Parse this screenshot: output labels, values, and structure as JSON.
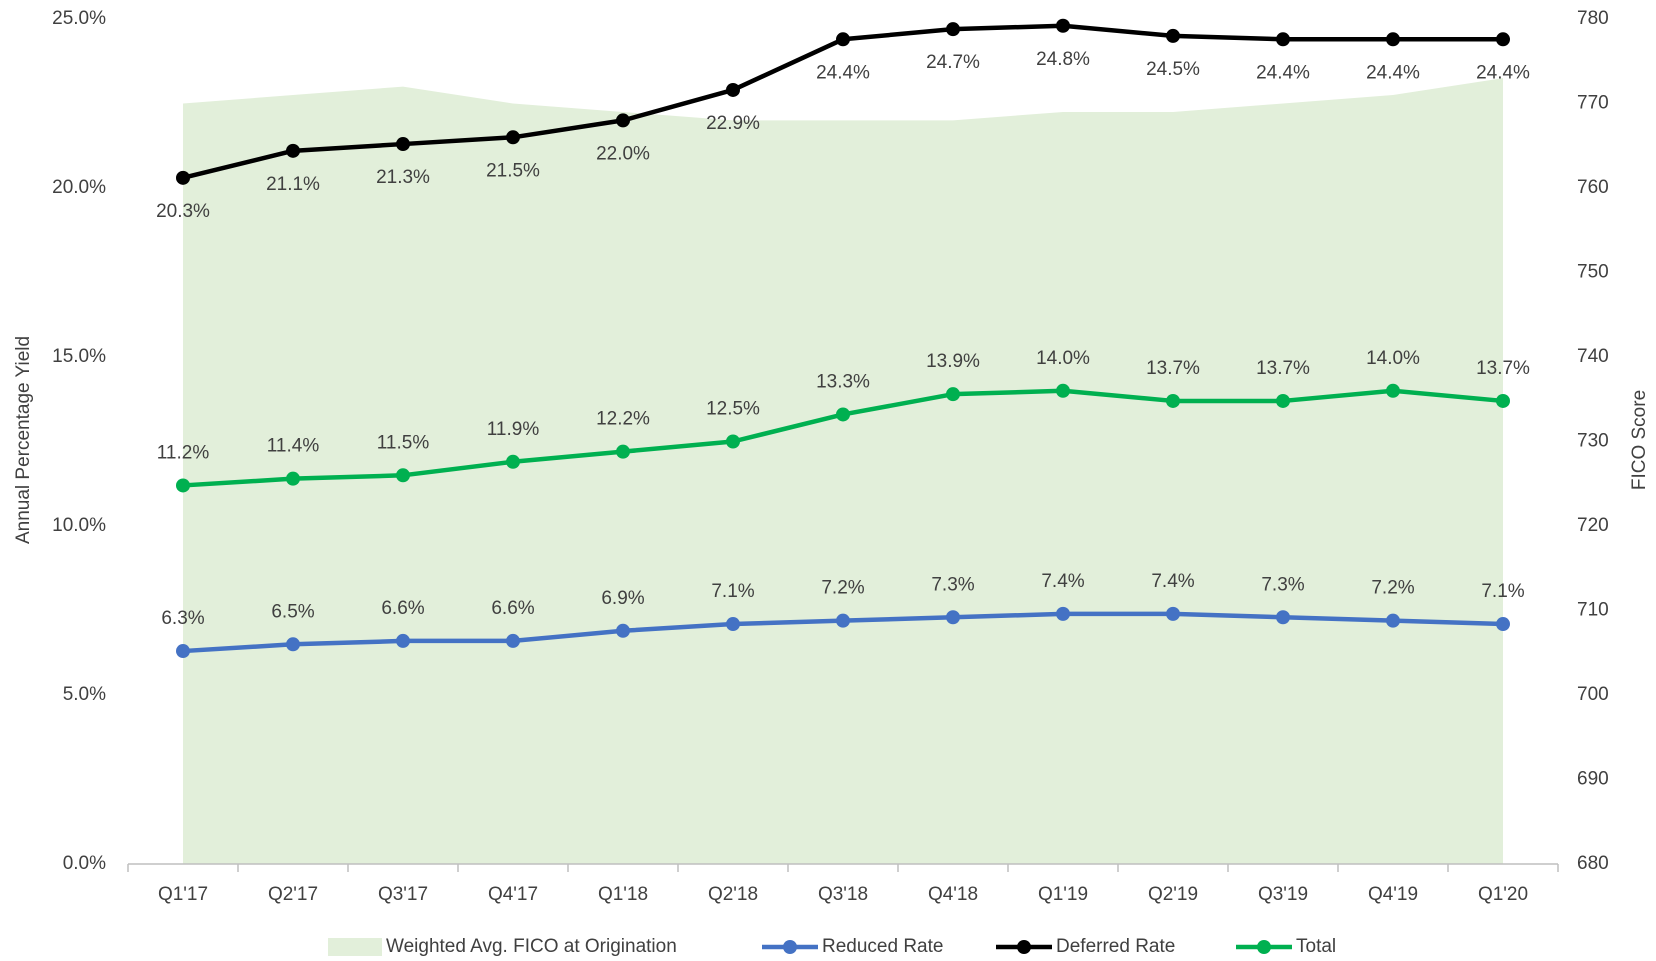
{
  "chart_data": {
    "type": "line",
    "y_label": "Annual Percentage Yield",
    "y2_label": "FICO Score",
    "categories": [
      "Q1'17",
      "Q2'17",
      "Q3'17",
      "Q4'17",
      "Q1'18",
      "Q2'18",
      "Q3'18",
      "Q4'18",
      "Q1'19",
      "Q2'19",
      "Q3'19",
      "Q4'19",
      "Q1'20"
    ],
    "ylim": [
      0,
      25
    ],
    "yticks": [
      {
        "value": 0,
        "label": "0.0%"
      },
      {
        "value": 5,
        "label": "5.0%"
      },
      {
        "value": 10,
        "label": "10.0%"
      },
      {
        "value": 15,
        "label": "15.0%"
      },
      {
        "value": 20,
        "label": "20.0%"
      },
      {
        "value": 25,
        "label": "25.0%"
      }
    ],
    "y2lim": [
      680,
      780
    ],
    "y2ticks": [
      680,
      690,
      700,
      710,
      720,
      730,
      740,
      750,
      760,
      770,
      780
    ],
    "grid": false,
    "legend": "bottom",
    "series": [
      {
        "name": "Weighted Avg. FICO at Origination",
        "type": "area",
        "axis": "y2",
        "color": "#e2efda",
        "values": [
          770,
          771,
          772,
          770,
          769,
          768,
          768,
          768,
          769,
          769,
          770,
          771,
          773
        ]
      },
      {
        "name": "Reduced Rate",
        "color": "#4472c4",
        "values": [
          6.3,
          6.5,
          6.6,
          6.6,
          6.9,
          7.1,
          7.2,
          7.3,
          7.4,
          7.4,
          7.3,
          7.2,
          7.1
        ],
        "value_labels": [
          "6.3%",
          "6.5%",
          "6.6%",
          "6.6%",
          "6.9%",
          "7.1%",
          "7.2%",
          "7.3%",
          "7.4%",
          "7.4%",
          "7.3%",
          "7.2%",
          "7.1%"
        ]
      },
      {
        "name": "Deferred Rate",
        "color": "#000000",
        "values": [
          20.3,
          21.1,
          21.3,
          21.5,
          22.0,
          22.9,
          24.4,
          24.7,
          24.8,
          24.5,
          24.4,
          24.4,
          24.4
        ],
        "value_labels": [
          "20.3%",
          "21.1%",
          "21.3%",
          "21.5%",
          "22.0%",
          "22.9%",
          "24.4%",
          "24.7%",
          "24.8%",
          "24.5%",
          "24.4%",
          "24.4%",
          "24.4%"
        ]
      },
      {
        "name": "Total",
        "color": "#00b050",
        "values": [
          11.2,
          11.4,
          11.5,
          11.9,
          12.2,
          12.5,
          13.3,
          13.9,
          14.0,
          13.7,
          13.7,
          14.0,
          13.7
        ],
        "value_labels": [
          "11.2%",
          "11.4%",
          "11.5%",
          "11.9%",
          "12.2%",
          "12.5%",
          "13.3%",
          "13.9%",
          "14.0%",
          "13.7%",
          "13.7%",
          "14.0%",
          "13.7%"
        ]
      }
    ]
  }
}
